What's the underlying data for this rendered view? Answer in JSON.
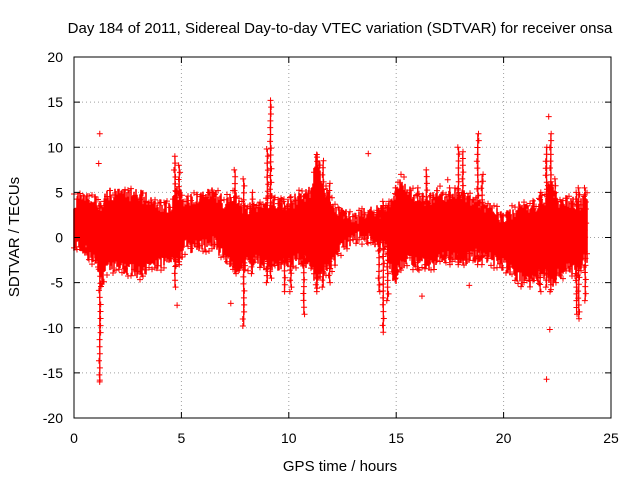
{
  "chart_data": {
    "type": "scatter",
    "title": "Day 184 of 2011, Sidereal Day-to-day VTEC variation (SDTVAR) for receiver onsa",
    "xlabel": "GPS time / hours",
    "ylabel": "SDTVAR / TECUs",
    "xlim": [
      0,
      25
    ],
    "ylim": [
      -20,
      20
    ],
    "x_ticks": [
      0,
      5,
      10,
      15,
      20,
      25
    ],
    "y_ticks": [
      -20,
      -15,
      -10,
      -5,
      0,
      5,
      10,
      15,
      20
    ],
    "x_tick_labels": [
      "0",
      "5",
      "10",
      "15",
      "20",
      "25"
    ],
    "y_tick_labels": [
      "-20",
      "-15",
      "-10",
      "-5",
      "0",
      "5",
      "10",
      "15",
      "20"
    ],
    "grid": true,
    "marker": "+",
    "color": "#ff0000",
    "envelope": {
      "description": "dense point cloud; upper/lower bounds of the main band (TECU)",
      "x": [
        0.0,
        0.5,
        1.0,
        1.3,
        1.6,
        2.5,
        3.0,
        3.5,
        4.0,
        4.5,
        4.8,
        5.2,
        5.8,
        6.5,
        7.0,
        7.5,
        8.0,
        8.5,
        9.0,
        9.5,
        10.0,
        10.5,
        11.0,
        11.3,
        11.6,
        12.0,
        12.5,
        13.0,
        13.5,
        14.0,
        14.5,
        14.9,
        15.2,
        15.6,
        16.0,
        16.5,
        17.0,
        17.5,
        18.0,
        18.5,
        19.0,
        19.5,
        20.0,
        20.5,
        21.0,
        21.5,
        22.0,
        22.2,
        22.5,
        23.0,
        23.5,
        23.9
      ],
      "upper": [
        4.0,
        4.3,
        4.0,
        3.5,
        4.7,
        4.8,
        4.6,
        4.2,
        3.5,
        3.5,
        5.0,
        4.0,
        4.6,
        4.8,
        3.8,
        4.5,
        3.0,
        3.5,
        4.0,
        3.8,
        3.5,
        4.5,
        5.0,
        9.0,
        5.5,
        4.0,
        2.5,
        2.0,
        2.5,
        2.8,
        3.0,
        4.5,
        6.5,
        5.0,
        4.5,
        4.0,
        5.0,
        4.5,
        5.0,
        4.0,
        3.5,
        3.0,
        2.0,
        3.0,
        3.5,
        3.5,
        4.5,
        6.0,
        4.0,
        4.0,
        3.5,
        5.0
      ],
      "lower": [
        -1.0,
        -1.5,
        -2.5,
        -5.0,
        -3.0,
        -3.5,
        -4.0,
        -3.5,
        -3.0,
        -2.0,
        -2.5,
        -1.0,
        -1.0,
        -0.5,
        -2.0,
        -3.5,
        -3.0,
        -2.5,
        -3.0,
        -3.0,
        -3.0,
        -2.5,
        -3.0,
        -5.0,
        -4.0,
        -3.0,
        -1.0,
        0.0,
        0.0,
        -0.5,
        -1.0,
        -5.0,
        -3.0,
        -2.5,
        -3.0,
        -3.0,
        -2.5,
        -2.0,
        -2.5,
        -2.0,
        -2.0,
        -2.5,
        -3.0,
        -4.0,
        -5.0,
        -4.5,
        -4.0,
        -5.0,
        -4.0,
        -3.5,
        -3.5,
        -2.0
      ]
    },
    "spikes": [
      {
        "x": 1.2,
        "min": -16.0,
        "max": 3.5
      },
      {
        "x": 4.7,
        "min": -5.5,
        "max": 9.0
      },
      {
        "x": 4.9,
        "min": -3.0,
        "max": 8.0
      },
      {
        "x": 7.5,
        "min": -4.0,
        "max": 7.5
      },
      {
        "x": 7.9,
        "min": -9.8,
        "max": 6.5
      },
      {
        "x": 8.3,
        "min": -4.0,
        "max": 5.0
      },
      {
        "x": 9.0,
        "min": -5.0,
        "max": 9.8
      },
      {
        "x": 9.15,
        "min": -4.5,
        "max": 15.2
      },
      {
        "x": 9.8,
        "min": -6.0,
        "max": 4.0
      },
      {
        "x": 10.1,
        "min": -5.5,
        "max": 4.5
      },
      {
        "x": 10.7,
        "min": -8.5,
        "max": 4.5
      },
      {
        "x": 11.3,
        "min": -6.0,
        "max": 9.2
      },
      {
        "x": 11.6,
        "min": -5.5,
        "max": 8.5
      },
      {
        "x": 11.9,
        "min": -5.0,
        "max": 6.0
      },
      {
        "x": 14.2,
        "min": -6.0,
        "max": 3.0
      },
      {
        "x": 14.4,
        "min": -10.5,
        "max": 4.0
      },
      {
        "x": 14.6,
        "min": -7.0,
        "max": 3.5
      },
      {
        "x": 15.0,
        "min": -4.5,
        "max": 5.5
      },
      {
        "x": 16.0,
        "min": -3.5,
        "max": 5.5
      },
      {
        "x": 16.4,
        "min": -3.0,
        "max": 7.5
      },
      {
        "x": 17.5,
        "min": -3.0,
        "max": 5.5
      },
      {
        "x": 17.9,
        "min": -3.0,
        "max": 10.0
      },
      {
        "x": 18.1,
        "min": -2.5,
        "max": 9.5
      },
      {
        "x": 18.8,
        "min": -3.0,
        "max": 11.5
      },
      {
        "x": 19.0,
        "min": -3.0,
        "max": 7.0
      },
      {
        "x": 21.7,
        "min": -6.0,
        "max": 5.0
      },
      {
        "x": 22.0,
        "min": -5.5,
        "max": 10.0
      },
      {
        "x": 22.2,
        "min": -6.0,
        "max": 11.5
      },
      {
        "x": 22.4,
        "min": -5.0,
        "max": 6.5
      },
      {
        "x": 23.4,
        "min": -8.5,
        "max": 5.0
      },
      {
        "x": 23.5,
        "min": -9.0,
        "max": 5.5
      },
      {
        "x": 23.8,
        "min": -7.0,
        "max": 5.5
      }
    ],
    "outliers": [
      {
        "x": 1.2,
        "y": 11.5
      },
      {
        "x": 1.15,
        "y": 8.2
      },
      {
        "x": 1.2,
        "y": -15.8
      },
      {
        "x": 4.8,
        "y": -7.5
      },
      {
        "x": 7.3,
        "y": -7.3
      },
      {
        "x": 9.5,
        "y": 4.2
      },
      {
        "x": 10.05,
        "y": -6.0
      },
      {
        "x": 13.7,
        "y": 9.3
      },
      {
        "x": 16.2,
        "y": -6.5
      },
      {
        "x": 17.4,
        "y": 6.4
      },
      {
        "x": 18.4,
        "y": -5.3
      },
      {
        "x": 22.0,
        "y": -15.7
      },
      {
        "x": 22.15,
        "y": -10.2
      },
      {
        "x": 22.1,
        "y": 13.4
      }
    ]
  }
}
